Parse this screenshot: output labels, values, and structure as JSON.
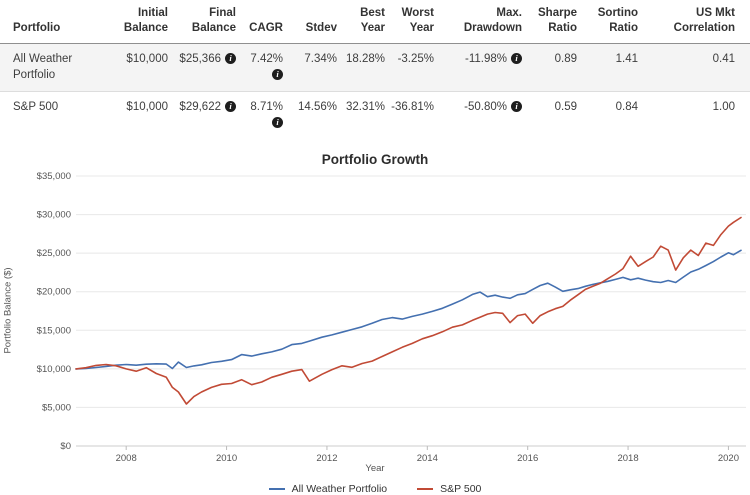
{
  "table": {
    "columns": [
      {
        "label": "Portfolio",
        "align": "left"
      },
      {
        "label": "Initial\nBalance"
      },
      {
        "label": "Final\nBalance"
      },
      {
        "label": "CAGR"
      },
      {
        "label": "Stdev"
      },
      {
        "label": "Best\nYear"
      },
      {
        "label": "Worst\nYear"
      },
      {
        "label": "Max.\nDrawdown"
      },
      {
        "label": "Sharpe\nRatio"
      },
      {
        "label": "Sortino\nRatio"
      },
      {
        "label": "US Mkt\nCorrelation"
      }
    ],
    "rows": [
      {
        "cells": [
          {
            "v": "All Weather Portfolio"
          },
          {
            "v": "$10,000"
          },
          {
            "v": "$25,366",
            "info": true
          },
          {
            "v": "7.42%",
            "info": true
          },
          {
            "v": "7.34%"
          },
          {
            "v": "18.28%"
          },
          {
            "v": "-3.25%"
          },
          {
            "v": "-11.98%",
            "info": true
          },
          {
            "v": "0.89"
          },
          {
            "v": "1.41"
          },
          {
            "v": "0.41"
          }
        ]
      },
      {
        "cells": [
          {
            "v": "S&P 500"
          },
          {
            "v": "$10,000"
          },
          {
            "v": "$29,622",
            "info": true
          },
          {
            "v": "8.71%",
            "info": true
          },
          {
            "v": "14.56%"
          },
          {
            "v": "32.31%"
          },
          {
            "v": "-36.81%"
          },
          {
            "v": "-50.80%",
            "info": true
          },
          {
            "v": "0.59"
          },
          {
            "v": "0.84"
          },
          {
            "v": "1.00"
          }
        ]
      }
    ],
    "info_icon_glyph": "i"
  },
  "chart_data": {
    "type": "line",
    "title": "Portfolio Growth",
    "xlabel": "Year",
    "ylabel": "Portfolio Balance ($)",
    "xlim": [
      2007.0,
      2020.35
    ],
    "ylim": [
      0,
      35000
    ],
    "grid": true,
    "legend_position": "bottom",
    "yticks": [
      {
        "value": 0,
        "label": "$0"
      },
      {
        "value": 5000,
        "label": "$5,000"
      },
      {
        "value": 10000,
        "label": "$10,000"
      },
      {
        "value": 15000,
        "label": "$15,000"
      },
      {
        "value": 20000,
        "label": "$20,000"
      },
      {
        "value": 25000,
        "label": "$25,000"
      },
      {
        "value": 30000,
        "label": "$30,000"
      },
      {
        "value": 35000,
        "label": "$35,000"
      }
    ],
    "xticks": [
      {
        "value": 2008,
        "label": "2008"
      },
      {
        "value": 2010,
        "label": "2010"
      },
      {
        "value": 2012,
        "label": "2012"
      },
      {
        "value": 2014,
        "label": "2014"
      },
      {
        "value": 2016,
        "label": "2016"
      },
      {
        "value": 2018,
        "label": "2018"
      },
      {
        "value": 2020,
        "label": "2020"
      }
    ],
    "x": [
      2007.0,
      2007.2,
      2007.4,
      2007.6,
      2007.8,
      2008.0,
      2008.2,
      2008.4,
      2008.6,
      2008.8,
      2008.92,
      2009.04,
      2009.2,
      2009.35,
      2009.5,
      2009.7,
      2009.9,
      2010.1,
      2010.3,
      2010.5,
      2010.7,
      2010.9,
      2011.1,
      2011.3,
      2011.5,
      2011.65,
      2011.9,
      2012.1,
      2012.3,
      2012.5,
      2012.7,
      2012.9,
      2013.1,
      2013.3,
      2013.5,
      2013.7,
      2013.9,
      2014.1,
      2014.3,
      2014.5,
      2014.7,
      2014.9,
      2015.05,
      2015.2,
      2015.35,
      2015.5,
      2015.65,
      2015.8,
      2015.95,
      2016.1,
      2016.25,
      2016.4,
      2016.55,
      2016.7,
      2016.85,
      2017.0,
      2017.15,
      2017.3,
      2017.45,
      2017.6,
      2017.75,
      2017.9,
      2018.05,
      2018.2,
      2018.35,
      2018.5,
      2018.65,
      2018.8,
      2018.95,
      2019.1,
      2019.25,
      2019.4,
      2019.55,
      2019.7,
      2019.85,
      2020.0,
      2020.1,
      2020.25
    ],
    "series": [
      {
        "name": "All Weather Portfolio",
        "color": "#4470b0",
        "values": [
          10000,
          10060,
          10180,
          10320,
          10480,
          10560,
          10480,
          10600,
          10650,
          10620,
          10050,
          10870,
          10180,
          10380,
          10520,
          10820,
          10980,
          11200,
          11850,
          11650,
          11950,
          12200,
          12550,
          13150,
          13300,
          13600,
          14100,
          14400,
          14750,
          15100,
          15450,
          15900,
          16400,
          16650,
          16450,
          16800,
          17100,
          17450,
          17850,
          18400,
          18950,
          19650,
          19950,
          19350,
          19550,
          19300,
          19150,
          19600,
          19750,
          20300,
          20800,
          21100,
          20600,
          20050,
          20250,
          20400,
          20700,
          20950,
          21150,
          21350,
          21600,
          21850,
          21550,
          21750,
          21500,
          21300,
          21200,
          21450,
          21200,
          21900,
          22550,
          22900,
          23400,
          23900,
          24500,
          25050,
          24800,
          25366
        ]
      },
      {
        "name": "S&P 500",
        "color": "#c14a35",
        "values": [
          10000,
          10150,
          10450,
          10560,
          10400,
          10000,
          9700,
          10150,
          9400,
          8900,
          7600,
          7000,
          5450,
          6400,
          7000,
          7600,
          8000,
          8100,
          8600,
          7950,
          8300,
          8900,
          9300,
          9700,
          9900,
          8400,
          9300,
          9900,
          10400,
          10200,
          10700,
          11000,
          11600,
          12200,
          12800,
          13300,
          13900,
          14300,
          14800,
          15400,
          15700,
          16300,
          16700,
          17100,
          17300,
          17200,
          16000,
          16900,
          17100,
          15900,
          16900,
          17400,
          17800,
          18100,
          18900,
          19600,
          20300,
          20700,
          21100,
          21700,
          22300,
          23000,
          24600,
          23300,
          23900,
          24500,
          25900,
          25400,
          22800,
          24400,
          25400,
          24700,
          26300,
          26000,
          27400,
          28500,
          29000,
          29622
        ]
      }
    ]
  },
  "style_colors": {
    "gridline": "#e8e8e8",
    "axis_line": "#cccccc",
    "tick_mark": "#bbbbbb",
    "tick_label": "#555555",
    "row_stripe": "#f4f4f4"
  }
}
